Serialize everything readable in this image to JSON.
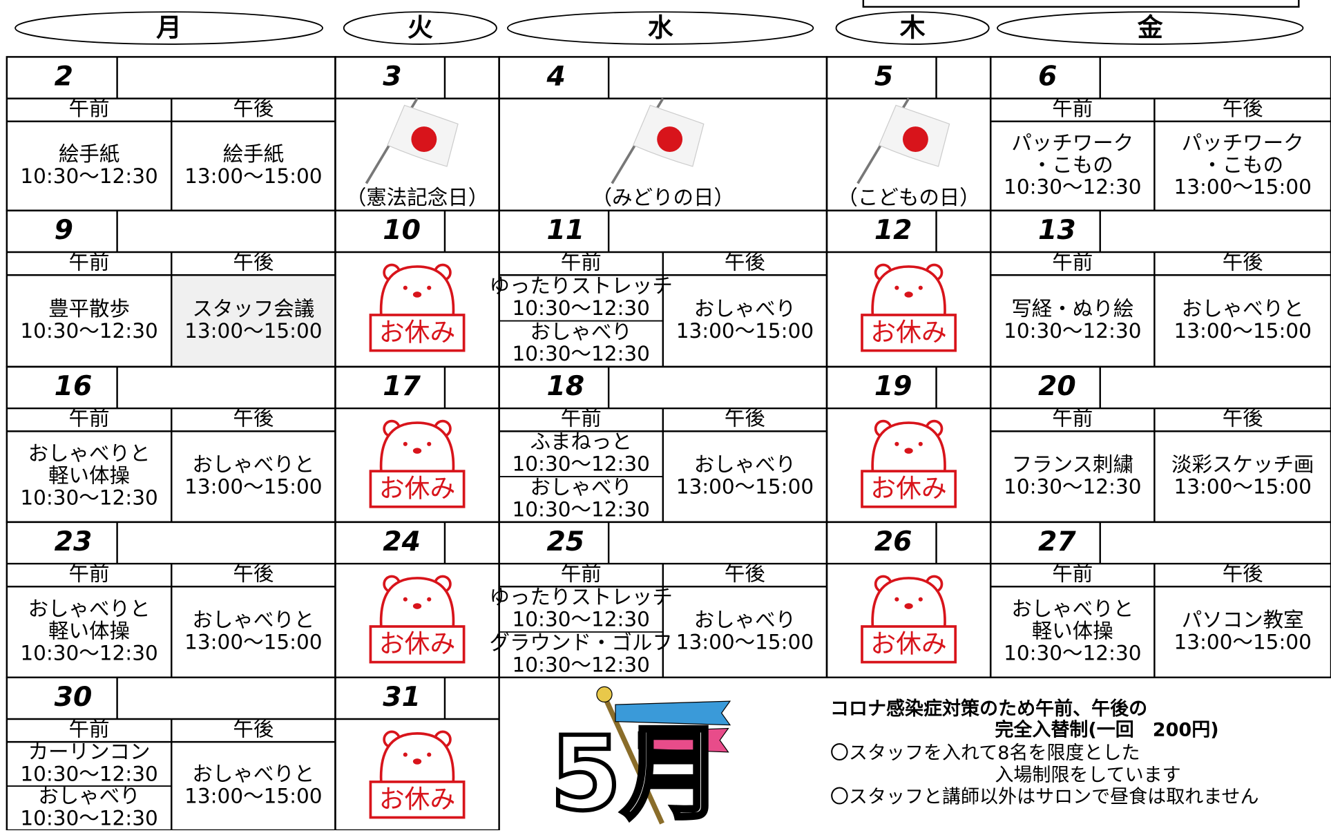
{
  "weekdays": [
    "月",
    "火",
    "水",
    "木",
    "金"
  ],
  "am_label": "午前",
  "pm_label": "午後",
  "weeks": [
    {
      "days": [
        {
          "date": "2",
          "am": [
            [
              "絵手紙",
              "10:30～12:30"
            ]
          ],
          "pm": [
            "絵手紙",
            "13:00～15:00"
          ]
        },
        {
          "date": "3",
          "holiday": "（憲法記念日）"
        },
        {
          "date": "4",
          "holiday": "（みどりの日）"
        },
        {
          "date": "5",
          "holiday": "（こどもの日）"
        },
        {
          "date": "6",
          "am": [
            [
              "パッチワーク",
              "・こもの",
              "10:30～12:30"
            ]
          ],
          "pm": [
            "パッチワーク",
            "・こもの",
            "13:00～15:00"
          ]
        }
      ]
    },
    {
      "days": [
        {
          "date": "9",
          "am": [
            [
              "豊平散歩",
              "10:30～12:30"
            ]
          ],
          "pm": [
            "スタッフ会議",
            "13:00～15:00"
          ],
          "pm_shaded": true
        },
        {
          "date": "10",
          "closed": "お休み"
        },
        {
          "date": "11",
          "am": [
            [
              "ゆったりストレッチ",
              "10:30～12:30"
            ],
            [
              "おしゃべり",
              "10:30～12:30"
            ]
          ],
          "pm": [
            "おしゃべり",
            "13:00～15:00"
          ]
        },
        {
          "date": "12",
          "closed": "お休み"
        },
        {
          "date": "13",
          "am": [
            [
              "写経・ぬり絵",
              "10:30～12:30"
            ]
          ],
          "pm": [
            "おしゃべりと",
            "13:00～15:00"
          ]
        }
      ]
    },
    {
      "days": [
        {
          "date": "16",
          "am": [
            [
              "おしゃべりと",
              "軽い体操",
              "10:30～12:30"
            ]
          ],
          "pm": [
            "おしゃべりと",
            "13:00～15:00"
          ]
        },
        {
          "date": "17",
          "closed": "お休み"
        },
        {
          "date": "18",
          "am": [
            [
              "ふまねっと",
              "10:30～12:30"
            ],
            [
              "おしゃべり",
              "10:30～12:30"
            ]
          ],
          "pm": [
            "おしゃべり",
            "13:00～15:00"
          ]
        },
        {
          "date": "19",
          "closed": "お休み"
        },
        {
          "date": "20",
          "am": [
            [
              "フランス刺繍",
              "10:30～12:30"
            ]
          ],
          "pm": [
            "淡彩スケッチ画",
            "13:00～15:00"
          ]
        }
      ]
    },
    {
      "days": [
        {
          "date": "23",
          "am": [
            [
              "おしゃべりと",
              "軽い体操",
              "10:30～12:30"
            ]
          ],
          "pm": [
            "おしゃべりと",
            "13:00～15:00"
          ]
        },
        {
          "date": "24",
          "closed": "お休み"
        },
        {
          "date": "25",
          "am": [
            [
              "ゆったりストレッチ",
              "10:30～12:30"
            ],
            [
              "グラウンド・ゴルフ",
              "10:30～12:30"
            ]
          ],
          "pm": [
            "おしゃべり",
            "13:00～15:00"
          ]
        },
        {
          "date": "26",
          "closed": "お休み"
        },
        {
          "date": "27",
          "am": [
            [
              "おしゃべりと",
              "軽い体操",
              "10:30～12:30"
            ]
          ],
          "pm": [
            "パソコン教室",
            "13:00～15:00"
          ]
        }
      ]
    },
    {
      "days": [
        {
          "date": "30",
          "am": [
            [
              "カーリンコン",
              "10:30～12:30"
            ],
            [
              "おしゃべり",
              "10:30～12:30"
            ]
          ],
          "pm": [
            "おしゃべりと",
            "13:00～15:00"
          ]
        },
        {
          "date": "31",
          "closed": "お休み"
        }
      ]
    }
  ],
  "month_graphic": "5月",
  "notice": {
    "title": [
      "コロナ感染症対策のため午前、午後の",
      "完全入替制(一回　200円)"
    ],
    "lines": [
      "〇スタッフを入れて8名を限度とした",
      "入場制限をしています",
      "〇スタッフと講師以外はサロンで昼食は取れません"
    ]
  }
}
